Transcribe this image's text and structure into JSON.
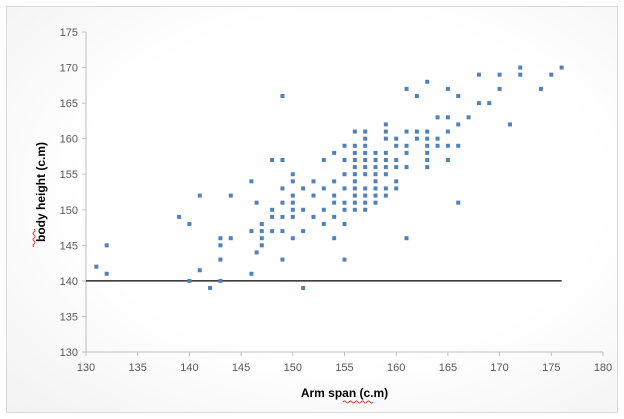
{
  "chart_data": {
    "type": "scatter",
    "xlabel": "Arm span (c.m)",
    "ylabel": "body height (c.m)",
    "xlim": [
      130,
      180
    ],
    "ylim": [
      130,
      175
    ],
    "x_ticks": [
      "130",
      "135",
      "140",
      "145",
      "150",
      "155",
      "160",
      "165",
      "170",
      "175",
      "180"
    ],
    "y_ticks": [
      "130",
      "135",
      "140",
      "145",
      "150",
      "155",
      "160",
      "165",
      "170",
      "175"
    ],
    "grid": false,
    "legend": "none",
    "marker_color": "#4f81bd",
    "reference_line": {
      "y": 140,
      "x_from": 130,
      "x_to": 176,
      "color": "#000000"
    },
    "points": [
      [
        131,
        142
      ],
      [
        132,
        145
      ],
      [
        132,
        141
      ],
      [
        139,
        149
      ],
      [
        140,
        148
      ],
      [
        140,
        140
      ],
      [
        141,
        152
      ],
      [
        141,
        141.5
      ],
      [
        142,
        139
      ],
      [
        143,
        146
      ],
      [
        143,
        145
      ],
      [
        143,
        143
      ],
      [
        143,
        140
      ],
      [
        144,
        152
      ],
      [
        144,
        146
      ],
      [
        146,
        154
      ],
      [
        146,
        147
      ],
      [
        146,
        141
      ],
      [
        146.5,
        151
      ],
      [
        146.5,
        144
      ],
      [
        147,
        148
      ],
      [
        147,
        147
      ],
      [
        147,
        146
      ],
      [
        147,
        145
      ],
      [
        148,
        157
      ],
      [
        148,
        150
      ],
      [
        148,
        149
      ],
      [
        148,
        147
      ],
      [
        149,
        166
      ],
      [
        149,
        157
      ],
      [
        149,
        153
      ],
      [
        149,
        151
      ],
      [
        149,
        149
      ],
      [
        149,
        147
      ],
      [
        149,
        143
      ],
      [
        150,
        155
      ],
      [
        150,
        154
      ],
      [
        150,
        152
      ],
      [
        150,
        151
      ],
      [
        150,
        150
      ],
      [
        150,
        149
      ],
      [
        150,
        146
      ],
      [
        151,
        153
      ],
      [
        151,
        150
      ],
      [
        151,
        147
      ],
      [
        151,
        139
      ],
      [
        152,
        154
      ],
      [
        152,
        152
      ],
      [
        152,
        149
      ],
      [
        153,
        157
      ],
      [
        153,
        153
      ],
      [
        153,
        150
      ],
      [
        153,
        148
      ],
      [
        154,
        158
      ],
      [
        154,
        154
      ],
      [
        154,
        152
      ],
      [
        154,
        151
      ],
      [
        154,
        149
      ],
      [
        154,
        146
      ],
      [
        155,
        159
      ],
      [
        155,
        157
      ],
      [
        155,
        155
      ],
      [
        155,
        153
      ],
      [
        155,
        151
      ],
      [
        155,
        150
      ],
      [
        155,
        148
      ],
      [
        155,
        143
      ],
      [
        156,
        161
      ],
      [
        156,
        159
      ],
      [
        156,
        158
      ],
      [
        156,
        157
      ],
      [
        156,
        156
      ],
      [
        156,
        155
      ],
      [
        156,
        154
      ],
      [
        156,
        153
      ],
      [
        156,
        152
      ],
      [
        156,
        151
      ],
      [
        156,
        150
      ],
      [
        157,
        161
      ],
      [
        157,
        160
      ],
      [
        157,
        159
      ],
      [
        157,
        158
      ],
      [
        157,
        157
      ],
      [
        157,
        156
      ],
      [
        157,
        155
      ],
      [
        157,
        153
      ],
      [
        157,
        152
      ],
      [
        157,
        151
      ],
      [
        157,
        150
      ],
      [
        158,
        158
      ],
      [
        158,
        157
      ],
      [
        158,
        156
      ],
      [
        158,
        155
      ],
      [
        158,
        154
      ],
      [
        158,
        153
      ],
      [
        158,
        152
      ],
      [
        158,
        151
      ],
      [
        159,
        162
      ],
      [
        159,
        161
      ],
      [
        159,
        160
      ],
      [
        159,
        158
      ],
      [
        159,
        157
      ],
      [
        159,
        156
      ],
      [
        159,
        155
      ],
      [
        159,
        153
      ],
      [
        159,
        152
      ],
      [
        160,
        160
      ],
      [
        160,
        159
      ],
      [
        160,
        157
      ],
      [
        160,
        156
      ],
      [
        160,
        154
      ],
      [
        160,
        153
      ],
      [
        161,
        167
      ],
      [
        161,
        161
      ],
      [
        161,
        159
      ],
      [
        161,
        158
      ],
      [
        161,
        156
      ],
      [
        161,
        146
      ],
      [
        162,
        166
      ],
      [
        162,
        161
      ],
      [
        162,
        160
      ],
      [
        163,
        168
      ],
      [
        163,
        161
      ],
      [
        163,
        160
      ],
      [
        163,
        159
      ],
      [
        163,
        158
      ],
      [
        163,
        157
      ],
      [
        163,
        156
      ],
      [
        164,
        163
      ],
      [
        164,
        160
      ],
      [
        164,
        159
      ],
      [
        165,
        167
      ],
      [
        165,
        163
      ],
      [
        165,
        161
      ],
      [
        165,
        159
      ],
      [
        165,
        157
      ],
      [
        166,
        166
      ],
      [
        166,
        162
      ],
      [
        166,
        159
      ],
      [
        166,
        151
      ],
      [
        167,
        163
      ],
      [
        168,
        169
      ],
      [
        168,
        165
      ],
      [
        169,
        165
      ],
      [
        170,
        169
      ],
      [
        170,
        167
      ],
      [
        171,
        162
      ],
      [
        172,
        170
      ],
      [
        172,
        169
      ],
      [
        174,
        167
      ],
      [
        175,
        169
      ],
      [
        176,
        170
      ]
    ]
  }
}
